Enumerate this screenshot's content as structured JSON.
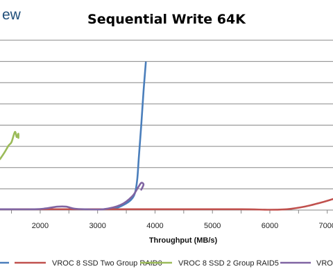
{
  "brand_fragment": "ew",
  "chart_data": {
    "type": "line",
    "title": "Sequential Write 64K",
    "xlabel": "Throughput (MB/s)",
    "ylabel": "",
    "xlim": [
      1300,
      7100
    ],
    "ylim": [
      0,
      10
    ],
    "x_ticks": [
      2000,
      3000,
      4000,
      5000,
      6000,
      7000
    ],
    "grid": true,
    "legend_position": "bottom",
    "series": [
      {
        "name": "",
        "color": "#4a7ebb",
        "points": [
          [
            1300,
            0.05
          ],
          [
            2000,
            0.05
          ],
          [
            2800,
            0.05
          ],
          [
            3100,
            0.05
          ],
          [
            3300,
            0.1
          ],
          [
            3450,
            0.3
          ],
          [
            3580,
            0.6
          ],
          [
            3650,
            1.0
          ],
          [
            3690,
            1.8
          ],
          [
            3720,
            3.2
          ],
          [
            3760,
            5.0
          ],
          [
            3800,
            7.0
          ],
          [
            3840,
            8.7
          ]
        ]
      },
      {
        "name": "VROC 8 SSD Two Group RAID0",
        "color": "#c0504d",
        "points": [
          [
            1300,
            0.05
          ],
          [
            2500,
            0.05
          ],
          [
            3500,
            0.05
          ],
          [
            4500,
            0.05
          ],
          [
            5500,
            0.05
          ],
          [
            6000,
            0.02
          ],
          [
            6300,
            0.05
          ],
          [
            6600,
            0.2
          ],
          [
            6900,
            0.45
          ],
          [
            7100,
            0.65
          ]
        ]
      },
      {
        "name": "VROC 8 SSD 2 Group RAID5",
        "color": "#9bbb59",
        "points": [
          [
            1300,
            3.0
          ],
          [
            1380,
            3.4
          ],
          [
            1450,
            3.8
          ],
          [
            1500,
            4.0
          ],
          [
            1560,
            4.6
          ],
          [
            1590,
            4.3
          ],
          [
            1620,
            4.5
          ],
          [
            1620,
            4.25
          ]
        ]
      },
      {
        "name": "VROC",
        "color": "#8064a2",
        "points": [
          [
            1300,
            0.05
          ],
          [
            1900,
            0.05
          ],
          [
            2100,
            0.1
          ],
          [
            2300,
            0.2
          ],
          [
            2450,
            0.2
          ],
          [
            2600,
            0.08
          ],
          [
            2800,
            0.05
          ],
          [
            3100,
            0.05
          ],
          [
            3400,
            0.3
          ],
          [
            3600,
            0.8
          ],
          [
            3700,
            1.3
          ],
          [
            3760,
            1.6
          ],
          [
            3800,
            1.5
          ],
          [
            3760,
            1.2
          ]
        ]
      }
    ]
  }
}
